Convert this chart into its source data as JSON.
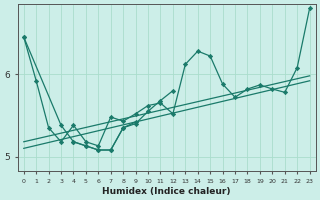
{
  "xlabel": "Humidex (Indice chaleur)",
  "bg_color": "#cceee8",
  "line_color": "#1a7a6a",
  "grid_color": "#aaddcc",
  "line1_x": [
    0,
    1,
    2,
    3,
    4,
    5,
    6,
    7,
    8,
    9,
    10,
    11,
    12,
    13,
    14,
    15,
    16,
    17,
    18,
    19,
    20,
    21,
    22,
    23
  ],
  "line1_y": [
    6.45,
    5.92,
    5.35,
    5.18,
    5.38,
    5.18,
    5.13,
    5.48,
    5.43,
    5.52,
    5.62,
    5.65,
    5.52,
    6.12,
    6.28,
    6.22,
    5.88,
    5.72,
    5.82,
    5.87,
    5.82,
    5.78,
    6.08,
    6.8
  ],
  "line2_x": [
    0,
    3,
    4,
    5,
    6,
    7,
    8,
    9,
    10,
    11,
    12
  ],
  "line2_y": [
    6.45,
    5.38,
    5.18,
    5.13,
    5.08,
    5.08,
    5.35,
    5.4,
    5.55,
    5.68,
    5.8
  ],
  "line3_x": [
    4,
    5,
    6,
    7,
    8,
    9
  ],
  "line3_y": [
    5.18,
    5.13,
    5.08,
    5.08,
    5.35,
    5.42
  ],
  "trend1_x": [
    0,
    23
  ],
  "trend1_y": [
    5.1,
    5.92
  ],
  "trend2_x": [
    0,
    23
  ],
  "trend2_y": [
    5.18,
    5.98
  ],
  "xlim": [
    -0.5,
    23.5
  ],
  "ylim": [
    4.82,
    6.85
  ],
  "yticks": [
    5,
    6
  ],
  "xticks": [
    0,
    1,
    2,
    3,
    4,
    5,
    6,
    7,
    8,
    9,
    10,
    11,
    12,
    13,
    14,
    15,
    16,
    17,
    18,
    19,
    20,
    21,
    22,
    23
  ]
}
